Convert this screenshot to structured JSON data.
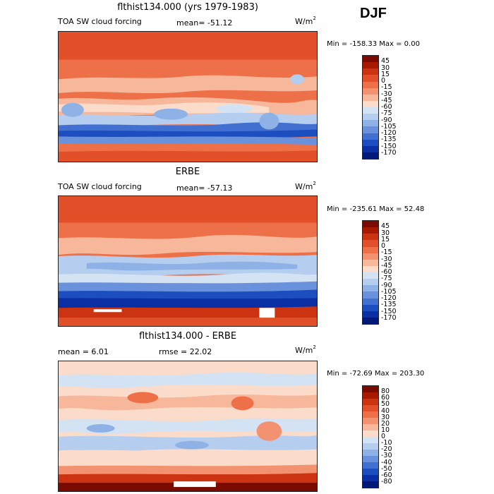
{
  "season": "DJF",
  "unit_base": "W/m",
  "unit_exp": "2",
  "panels": [
    {
      "title": "flthist134.000 (yrs 1979-1983)",
      "left_label": "TOA SW cloud forcing",
      "stat_label": "mean= -51.12",
      "minmax": "Min = -158.33 Max =    0.00",
      "levels": [
        "45",
        "30",
        "15",
        "0",
        "-15",
        "-30",
        "-45",
        "-60",
        "-75",
        "-90",
        "-105",
        "-120",
        "-135",
        "-150",
        "-170"
      ],
      "colors": [
        "#7a0b00",
        "#a81a00",
        "#cc3310",
        "#e2502a",
        "#ee7048",
        "#f39270",
        "#f7b79b",
        "#fbdccb",
        "#d4e3f4",
        "#b5cdee",
        "#8eb1e6",
        "#6a92dc",
        "#4170d0",
        "#1d4ec0",
        "#0a2fa5",
        "#00187a"
      ]
    },
    {
      "title": "ERBE",
      "left_label": "TOA SW cloud forcing",
      "stat_label": "mean= -57.13",
      "minmax": "Min = -235.61 Max =   52.48",
      "levels": [
        "45",
        "30",
        "15",
        "0",
        "-15",
        "-30",
        "-45",
        "-60",
        "-75",
        "-90",
        "-105",
        "-120",
        "-135",
        "-150",
        "-170"
      ],
      "colors": [
        "#7a0b00",
        "#a81a00",
        "#cc3310",
        "#e2502a",
        "#ee7048",
        "#f39270",
        "#f7b79b",
        "#fbdccb",
        "#d4e3f4",
        "#b5cdee",
        "#8eb1e6",
        "#6a92dc",
        "#4170d0",
        "#1d4ec0",
        "#0a2fa5",
        "#00187a"
      ]
    },
    {
      "title": "flthist134.000 - ERBE",
      "left_label": "mean =    6.01",
      "stat_label": "rmse =   22.02",
      "minmax": "Min = -72.69 Max = 203.30",
      "levels": [
        "80",
        "60",
        "50",
        "40",
        "30",
        "20",
        "10",
        "0",
        "-10",
        "-20",
        "-30",
        "-40",
        "-50",
        "-60",
        "-80"
      ],
      "colors": [
        "#7a0b00",
        "#a81a00",
        "#cc3310",
        "#e2502a",
        "#ee7048",
        "#f39270",
        "#f7b79b",
        "#fbdccb",
        "#d4e3f4",
        "#b5cdee",
        "#8eb1e6",
        "#6a92dc",
        "#4170d0",
        "#1d4ec0",
        "#0a2fa5",
        "#00187a"
      ]
    }
  ]
}
